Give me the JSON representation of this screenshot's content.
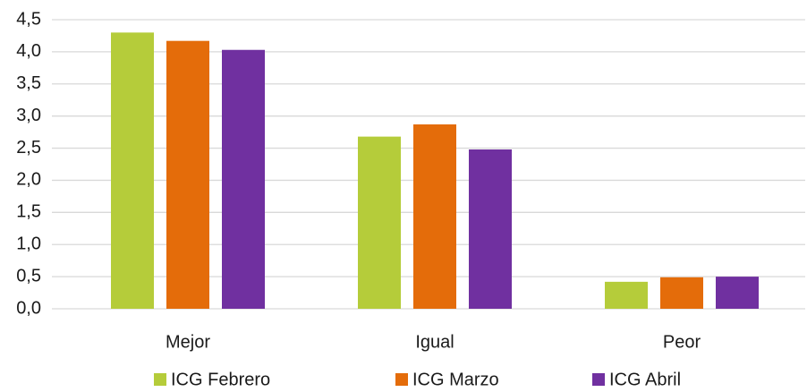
{
  "chart_data": {
    "type": "bar",
    "categories": [
      "Mejor",
      "Igual",
      "Peor"
    ],
    "series": [
      {
        "name": "ICG Febrero",
        "color": "#b5cc3a",
        "values": [
          4.3,
          2.68,
          0.42
        ]
      },
      {
        "name": "ICG Marzo",
        "color": "#e46c0a",
        "values": [
          4.17,
          2.87,
          0.49
        ]
      },
      {
        "name": "ICG Abril",
        "color": "#7030a0",
        "values": [
          4.03,
          2.48,
          0.5
        ]
      }
    ],
    "ylim": [
      0,
      4.5
    ],
    "yticks": [
      {
        "value": 0,
        "label": "0,0"
      },
      {
        "value": 0.5,
        "label": "0,5"
      },
      {
        "value": 1,
        "label": "1,0"
      },
      {
        "value": 1.5,
        "label": "1,5"
      },
      {
        "value": 2,
        "label": "2,0"
      },
      {
        "value": 2.5,
        "label": "2,5"
      },
      {
        "value": 3,
        "label": "3,0"
      },
      {
        "value": 3.5,
        "label": "3,5"
      },
      {
        "value": 4,
        "label": "4,0"
      },
      {
        "value": 4.5,
        "label": "4,5"
      }
    ],
    "grid": true,
    "legend": "bottom"
  }
}
